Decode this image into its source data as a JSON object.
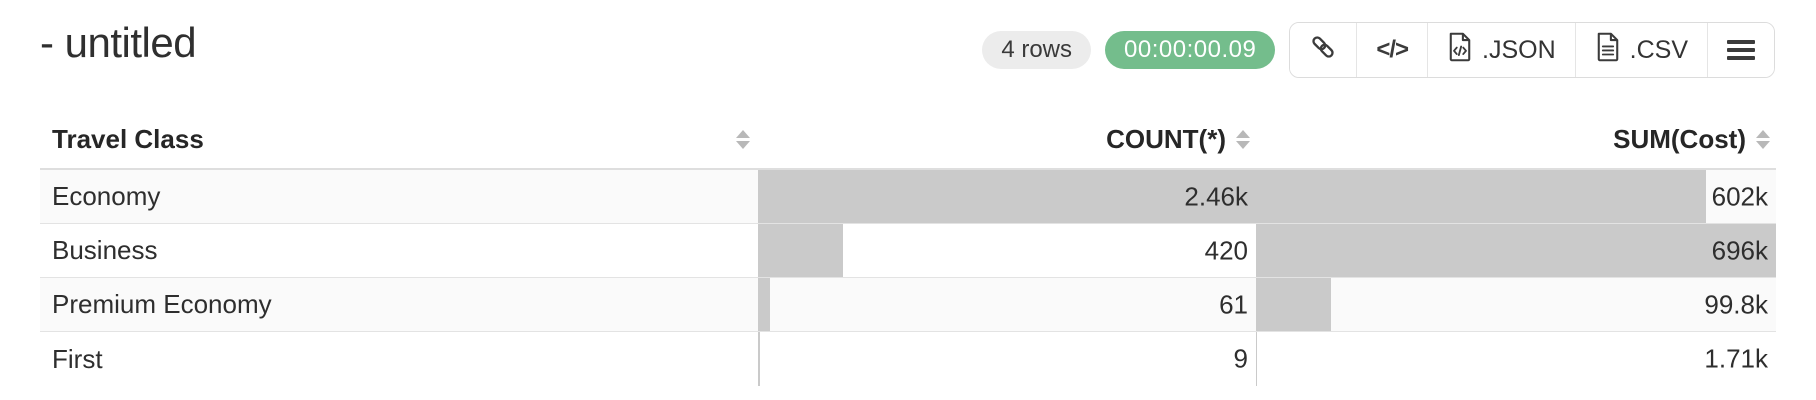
{
  "header": {
    "title": "- untitled",
    "rows_badge": "4 rows",
    "timer_badge": "00:00:00.09",
    "toolbar": {
      "code_glyph": "</>",
      "json_label": ".JSON",
      "csv_label": ".CSV"
    }
  },
  "table": {
    "columns": [
      {
        "label": "Travel Class",
        "align": "left"
      },
      {
        "label": "COUNT(*)",
        "align": "right"
      },
      {
        "label": "SUM(Cost)",
        "align": "right"
      }
    ],
    "count_max": 2460,
    "sum_max": 696000,
    "rows": [
      {
        "class_label": "Economy",
        "count_display": "2.46k",
        "count_value": 2460,
        "sum_display": "602k",
        "sum_value": 602000
      },
      {
        "class_label": "Business",
        "count_display": "420",
        "count_value": 420,
        "sum_display": "696k",
        "sum_value": 696000
      },
      {
        "class_label": "Premium Economy",
        "count_display": "61",
        "count_value": 61,
        "sum_display": "99.8k",
        "sum_value": 99800
      },
      {
        "class_label": "First",
        "count_display": "9",
        "count_value": 9,
        "sum_display": "1.71k",
        "sum_value": 1710
      }
    ]
  },
  "colors": {
    "accent_green": "#74bd8c",
    "badge_gray": "#ececec",
    "bar_gray": "#cacaca",
    "stripe": "#fafafa",
    "icon_dark": "#3b3b3b"
  }
}
